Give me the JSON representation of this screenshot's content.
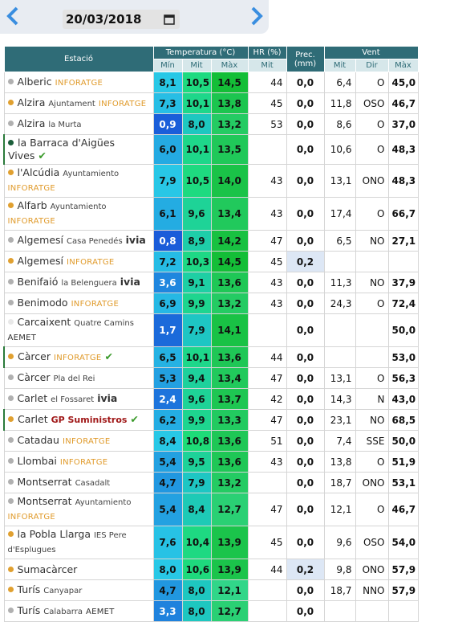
{
  "header": {
    "date": "20/03/2018"
  },
  "table": {
    "groups": [
      "Estació",
      "Temperatura (°C)",
      "HR (%)",
      "Prec. (mm)",
      "Vent"
    ],
    "subheaders": [
      "Mín",
      "Mit",
      "Màx",
      "Mit",
      "Mit",
      "Dir",
      "Màx"
    ],
    "rows": [
      {
        "name": "Alberic",
        "sub": null,
        "source": "INFORATGE",
        "verified": false,
        "dot": "#b0b0b0",
        "min": "8,1",
        "mit": "10,5",
        "max": "14,5",
        "hr": "44",
        "prec": "0,0",
        "vmit": "6,4",
        "dir": "O",
        "vmax": "45,0"
      },
      {
        "name": "Alzira",
        "sub": "Ajuntament",
        "source": "INFORATGE",
        "verified": false,
        "dot": "#e0a030",
        "min": "7,3",
        "mit": "10,1",
        "max": "13,8",
        "hr": "45",
        "prec": "0,0",
        "vmit": "11,8",
        "dir": "OSO",
        "vmax": "46,7"
      },
      {
        "name": "Alzira",
        "sub": "la Murta",
        "source": null,
        "verified": false,
        "dot": "#b0b0b0",
        "min": "0,9",
        "mit": "8,0",
        "max": "13,2",
        "hr": "53",
        "prec": "0,0",
        "vmit": "8,6",
        "dir": "O",
        "vmax": "37,0"
      },
      {
        "name": "la Barraca d'Aigües Vives",
        "sub": null,
        "source": null,
        "verified": true,
        "dot": "#1b5e3a",
        "min": "6,0",
        "mit": "10,1",
        "max": "13,5",
        "hr": null,
        "prec": "0,0",
        "vmit": "10,6",
        "dir": "O",
        "vmax": "48,3"
      },
      {
        "name": "l'Alcúdia",
        "sub": "Ayuntamiento",
        "source": "INFORATGE",
        "verified": false,
        "dot": "#e0a030",
        "min": "7,9",
        "mit": "10,5",
        "max": "14,0",
        "hr": "43",
        "prec": "0,0",
        "vmit": "13,1",
        "dir": "ONO",
        "vmax": "48,3"
      },
      {
        "name": "Alfarb",
        "sub": "Ayuntamiento",
        "source": "INFORATGE",
        "verified": false,
        "dot": "#e0a030",
        "min": "6,1",
        "mit": "9,6",
        "max": "13,4",
        "hr": "43",
        "prec": "0,0",
        "vmit": "17,4",
        "dir": "O",
        "vmax": "66,7"
      },
      {
        "name": "Algemesí",
        "sub": "Casa Penedés",
        "source": "ivia",
        "verified": false,
        "dot": "#b0b0b0",
        "min": "0,8",
        "mit": "8,9",
        "max": "14,2",
        "hr": "47",
        "prec": "0,0",
        "vmit": "6,5",
        "dir": "NO",
        "vmax": "27,1"
      },
      {
        "name": "Algemesí",
        "sub": null,
        "source": "INFORATGE",
        "verified": false,
        "dot": "#e0a030",
        "min": "7,2",
        "mit": "10,3",
        "max": "14,5",
        "hr": "45",
        "prec": "0,2",
        "vmit": null,
        "dir": null,
        "vmax": null
      },
      {
        "name": "Benifaió",
        "sub": "la Belenguera",
        "source": "ivia",
        "verified": false,
        "dot": "#b0b0b0",
        "min": "3,6",
        "mit": "9,1",
        "max": "13,6",
        "hr": "43",
        "prec": "0,0",
        "vmit": "11,3",
        "dir": "NO",
        "vmax": "37,9"
      },
      {
        "name": "Benimodo",
        "sub": null,
        "source": "INFORATGE",
        "verified": false,
        "dot": "#b0b0b0",
        "min": "6,9",
        "mit": "9,9",
        "max": "13,2",
        "hr": "43",
        "prec": "0,0",
        "vmit": "24,3",
        "dir": "O",
        "vmax": "72,4"
      },
      {
        "name": "Carcaixent",
        "sub": "Quatre Camins",
        "source": "AEMET",
        "verified": false,
        "dot": "#e8e8e8",
        "min": "1,7",
        "mit": "7,9",
        "max": "14,1",
        "hr": null,
        "prec": "0,0",
        "vmit": null,
        "dir": null,
        "vmax": "50,0"
      },
      {
        "name": "Càrcer",
        "sub": null,
        "source": "INFORATGE",
        "verified": true,
        "dot": "#e0a030",
        "min": "6,5",
        "mit": "10,1",
        "max": "13,6",
        "hr": "44",
        "prec": "0,0",
        "vmit": null,
        "dir": null,
        "vmax": "53,0"
      },
      {
        "name": "Càrcer",
        "sub": "Pla del Rei",
        "source": null,
        "verified": false,
        "dot": "#b0b0b0",
        "min": "5,3",
        "mit": "9,4",
        "max": "13,4",
        "hr": "47",
        "prec": "0,0",
        "vmit": "13,1",
        "dir": "O",
        "vmax": "56,3"
      },
      {
        "name": "Carlet",
        "sub": "el Fossaret",
        "source": "ivia",
        "verified": false,
        "dot": "#b0b0b0",
        "min": "2,4",
        "mit": "9,6",
        "max": "13,7",
        "hr": "42",
        "prec": "0,0",
        "vmit": "14,3",
        "dir": "N",
        "vmax": "43,0"
      },
      {
        "name": "Carlet",
        "sub": null,
        "source": "GP Suministros",
        "verified": true,
        "dot": "#e0a030",
        "min": "6,2",
        "mit": "9,9",
        "max": "13,3",
        "hr": "47",
        "prec": "0,0",
        "vmit": "23,1",
        "dir": "NO",
        "vmax": "68,5"
      },
      {
        "name": "Catadau",
        "sub": null,
        "source": "INFORATGE",
        "verified": false,
        "dot": "#b0b0b0",
        "min": "8,4",
        "mit": "10,8",
        "max": "13,6",
        "hr": "51",
        "prec": "0,0",
        "vmit": "7,4",
        "dir": "SSE",
        "vmax": "50,0"
      },
      {
        "name": "Llombai",
        "sub": null,
        "source": "INFORATGE",
        "verified": false,
        "dot": "#b0b0b0",
        "min": "5,4",
        "mit": "9,5",
        "max": "13,6",
        "hr": "43",
        "prec": "0,0",
        "vmit": "13,8",
        "dir": "O",
        "vmax": "51,9"
      },
      {
        "name": "Montserrat",
        "sub": "Casadalt",
        "source": null,
        "verified": false,
        "dot": "#b0b0b0",
        "min": "4,7",
        "mit": "7,9",
        "max": "13,2",
        "hr": null,
        "prec": "0,0",
        "vmit": "18,7",
        "dir": "ONO",
        "vmax": "53,1"
      },
      {
        "name": "Montserrat",
        "sub": "Ayuntamiento",
        "source": "INFORATGE",
        "verified": false,
        "dot": "#b0b0b0",
        "min": "5,4",
        "mit": "8,4",
        "max": "12,7",
        "hr": "47",
        "prec": "0,0",
        "vmit": "12,1",
        "dir": "O",
        "vmax": "46,7"
      },
      {
        "name": "la Pobla Llarga",
        "sub": "IES Pere d'Esplugues",
        "source": null,
        "verified": false,
        "dot": "#e0a030",
        "min": "7,6",
        "mit": "10,4",
        "max": "13,9",
        "hr": "45",
        "prec": "0,0",
        "vmit": "9,6",
        "dir": "OSO",
        "vmax": "54,0"
      },
      {
        "name": "Sumacàrcer",
        "sub": null,
        "source": null,
        "verified": false,
        "dot": "#e0a030",
        "min": "8,0",
        "mit": "10,6",
        "max": "13,9",
        "hr": "44",
        "prec": "0,2",
        "vmit": "9,8",
        "dir": "ONO",
        "vmax": "57,9"
      },
      {
        "name": "Turís",
        "sub": "Canyapar",
        "source": null,
        "verified": false,
        "dot": "#e0a030",
        "min": "4,7",
        "mit": "8,0",
        "max": "12,1",
        "hr": null,
        "prec": "0,0",
        "vmit": "18,7",
        "dir": "NNO",
        "vmax": "57,9"
      },
      {
        "name": "Turís",
        "sub": "Calabarra",
        "source": "AEMET",
        "verified": false,
        "dot": "#b0b0b0",
        "min": "3,3",
        "mit": "8,0",
        "max": "12,7",
        "hr": null,
        "prec": "0,0",
        "vmit": null,
        "dir": null,
        "vmax": null
      }
    ]
  }
}
